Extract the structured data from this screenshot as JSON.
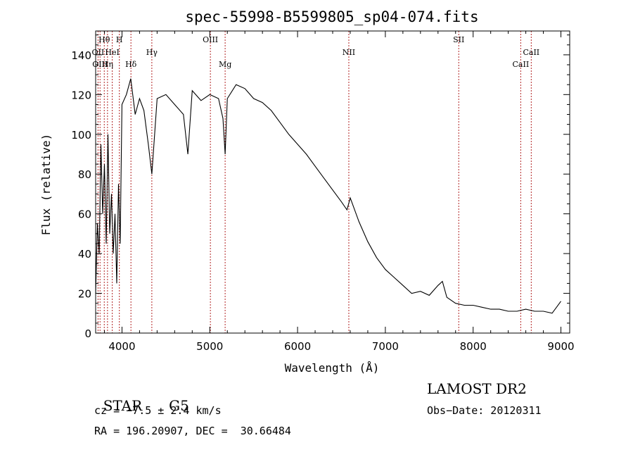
{
  "chart_data": {
    "type": "line",
    "title": "spec-55998-B5599805_sp04-074.fits",
    "xlabel": "Wavelength (Å)",
    "ylabel": "Flux (relative)",
    "xlim": [
      3700,
      9100
    ],
    "ylim": [
      0,
      152
    ],
    "xticks": [
      4000,
      5000,
      6000,
      7000,
      8000,
      9000
    ],
    "yticks": [
      0,
      20,
      40,
      60,
      80,
      100,
      120,
      140
    ],
    "series": [
      {
        "x": [
          3700,
          3720,
          3740,
          3760,
          3780,
          3800,
          3820,
          3840,
          3860,
          3880,
          3900,
          3920,
          3940,
          3960,
          3980,
          4000,
          4050,
          4100,
          4150,
          4200,
          4250,
          4300,
          4340,
          4400,
          4500,
          4600,
          4700,
          4750,
          4800,
          4900,
          5000,
          5100,
          5150,
          5175,
          5200,
          5300,
          5400,
          5500,
          5600,
          5700,
          5800,
          5900,
          6000,
          6100,
          6200,
          6300,
          6400,
          6500,
          6563,
          6600,
          6700,
          6800,
          6900,
          7000,
          7100,
          7200,
          7300,
          7400,
          7500,
          7600,
          7650,
          7700,
          7800,
          7900,
          8000,
          8100,
          8200,
          8300,
          8400,
          8500,
          8600,
          8700,
          8800,
          8900,
          8950,
          9000
        ],
        "y": [
          20,
          55,
          40,
          95,
          60,
          85,
          45,
          100,
          50,
          70,
          40,
          60,
          25,
          75,
          45,
          115,
          120,
          128,
          110,
          118,
          112,
          95,
          80,
          118,
          120,
          115,
          110,
          90,
          122,
          117,
          120,
          118,
          108,
          90,
          118,
          125,
          123,
          118,
          116,
          112,
          106,
          100,
          95,
          90,
          84,
          78,
          72,
          66,
          62,
          68,
          56,
          46,
          38,
          32,
          28,
          24,
          20,
          21,
          19,
          24,
          26,
          18,
          15,
          14,
          14,
          13,
          12,
          12,
          11,
          11,
          12,
          11,
          11,
          10,
          13,
          16
        ]
      }
    ],
    "spectral_lines": [
      {
        "label": "Hθ",
        "wl": 3798,
        "row": 0
      },
      {
        "label": "H",
        "wl": 3970,
        "row": 0
      },
      {
        "label": "OII",
        "wl": 3727,
        "row": 1
      },
      {
        "label": "HeI",
        "wl": 3889,
        "row": 1
      },
      {
        "label": "Hγ",
        "wl": 4340,
        "row": 1
      },
      {
        "label": "OIII",
        "wl": 5007,
        "row": 0
      },
      {
        "label": "Mg",
        "wl": 5175,
        "row": 2
      },
      {
        "label": "NII",
        "wl": 6584,
        "row": 1
      },
      {
        "label": "SII",
        "wl": 7836,
        "row": 0
      },
      {
        "label": "CaII",
        "wl": 8542,
        "row": 2
      },
      {
        "label": "CaII",
        "wl": 8662,
        "row": 1
      },
      {
        "label": "OIII",
        "wl": 3750,
        "row": 2
      },
      {
        "label": "Hη",
        "wl": 3835,
        "row": 2
      },
      {
        "label": "Hδ",
        "wl": 4102,
        "row": 2
      }
    ]
  },
  "info": {
    "class": "STAR",
    "subclass": "G5",
    "survey": "LAMOST DR2",
    "cz": "cz = −7.5 ± 2.4 km/s",
    "obs_date": "Obs−Date: 20120311",
    "coords": "RA = 196.20907, DEC =  30.66484"
  },
  "colors": {
    "spectrum": "#000000",
    "line_marker": "#b22222"
  }
}
